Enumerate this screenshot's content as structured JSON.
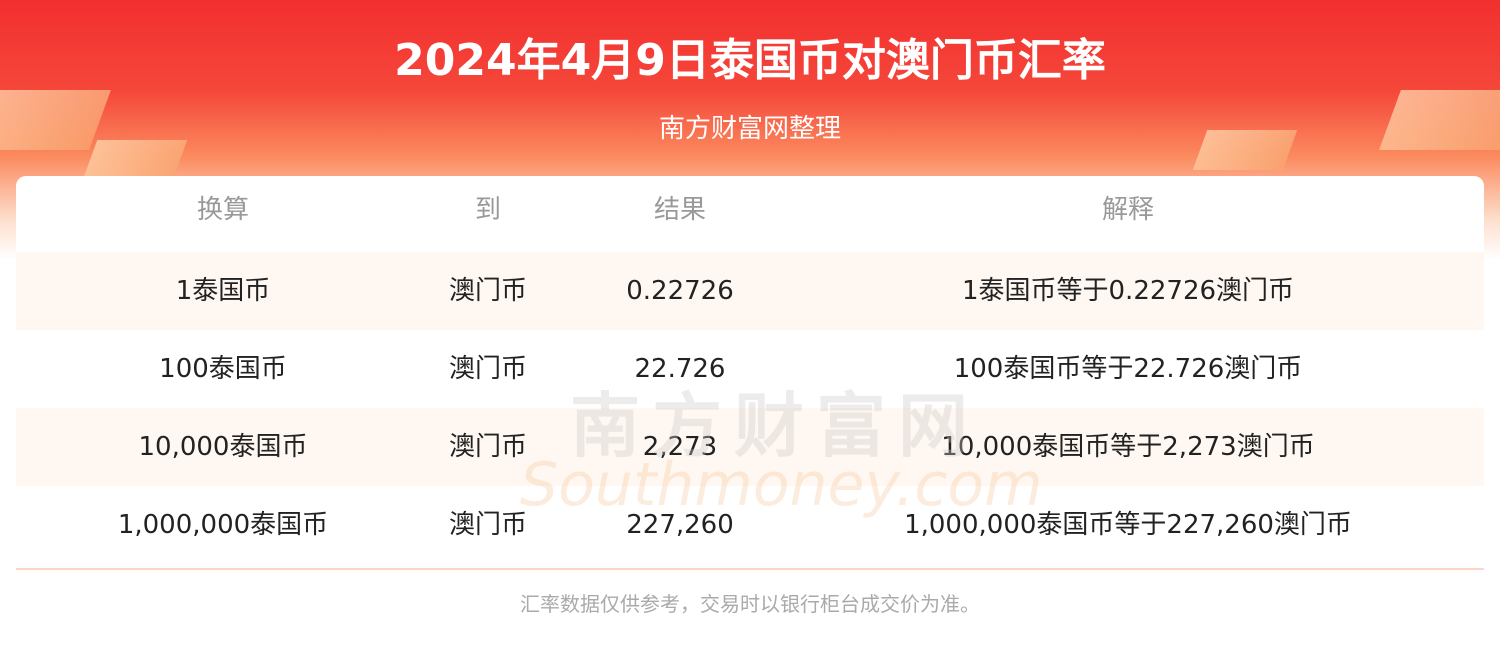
{
  "header": {
    "title": "2024年4月9日泰国币对澳门币汇率",
    "subtitle": "南方财富网整理"
  },
  "table": {
    "columns": [
      "换算",
      "到",
      "结果",
      "解释"
    ],
    "rows": [
      [
        "1泰国币",
        "澳门币",
        "0.22726",
        "1泰国币等于0.22726澳门币"
      ],
      [
        "100泰国币",
        "澳门币",
        "22.726",
        "100泰国币等于22.726澳门币"
      ],
      [
        "10,000泰国币",
        "澳门币",
        "2,273",
        "10,000泰国币等于2,273澳门币"
      ],
      [
        "1,000,000泰国币",
        "澳门币",
        "227,260",
        "1,000,000泰国币等于227,260澳门币"
      ]
    ]
  },
  "watermark": {
    "cn": "南方财富网",
    "en": "Southmoney.com"
  },
  "footer": {
    "note": "汇率数据仅供参考，交易时以银行柜台成交价为准。"
  }
}
